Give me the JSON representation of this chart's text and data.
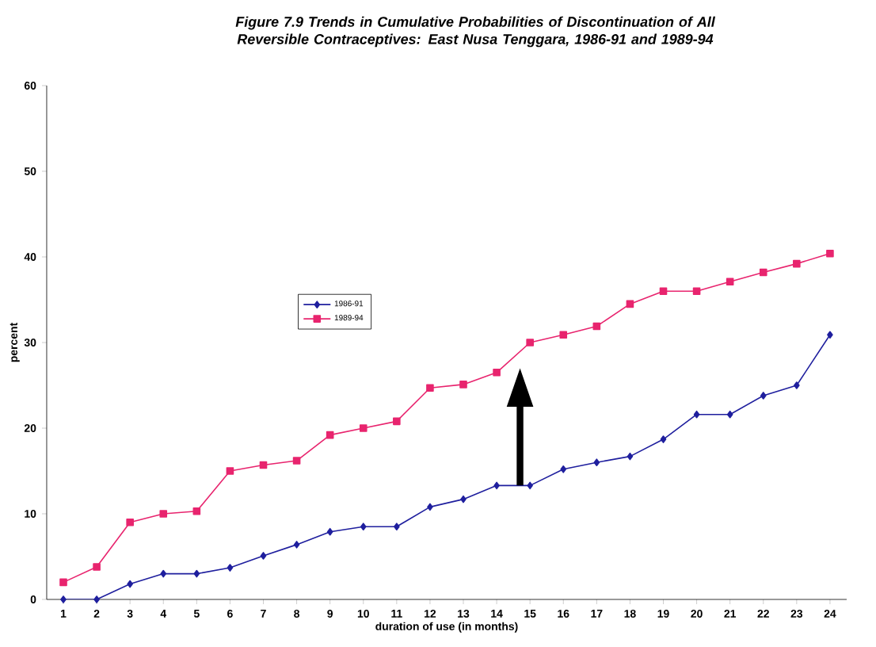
{
  "chart_data": {
    "type": "line",
    "title": "Figure 7.9 Trends in Cumulative Probabilities of Discontinuation of All Reversible Contraceptives: East Nusa Tenggara, 1986-91 and 1989-94",
    "xlabel": "duration of use (in months)",
    "ylabel": "percent",
    "categories": [
      "1",
      "2",
      "3",
      "4",
      "5",
      "6",
      "7",
      "8",
      "9",
      "10",
      "11",
      "12",
      "13",
      "14",
      "15",
      "16",
      "17",
      "18",
      "19",
      "20",
      "21",
      "22",
      "23",
      "24"
    ],
    "ylim": [
      0,
      60
    ],
    "yticks": [
      0,
      10,
      20,
      30,
      40,
      50,
      60
    ],
    "grid": false,
    "legend": "center",
    "series": [
      {
        "name": "1986-91",
        "color": "#1f1f9e",
        "marker": "diamond",
        "values": [
          0,
          0,
          1.8,
          3,
          3,
          3.7,
          5.1,
          6.4,
          7.9,
          8.5,
          8.5,
          10.8,
          11.7,
          13.3,
          13.3,
          15.2,
          16,
          16.7,
          18.7,
          21.6,
          21.6,
          23.8,
          25,
          30.9
        ]
      },
      {
        "name": "1989-94",
        "color": "#e8246e",
        "marker": "square",
        "values": [
          2,
          3.8,
          9,
          10,
          10.3,
          15,
          15.7,
          16.2,
          19.2,
          20,
          20.8,
          24.7,
          25.1,
          26.5,
          30,
          30.9,
          31.9,
          34.5,
          36,
          36,
          37.1,
          38.2,
          39.2,
          40.4
        ]
      }
    ]
  }
}
